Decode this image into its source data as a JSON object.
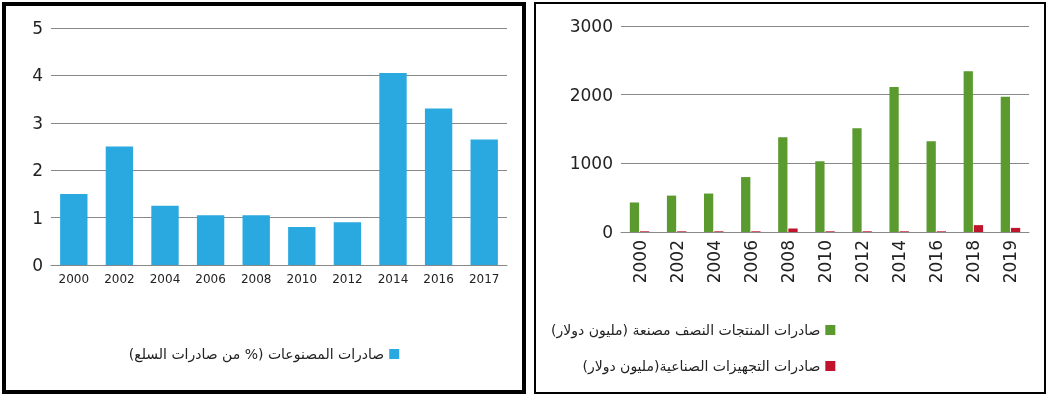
{
  "chart_data": [
    {
      "type": "bar",
      "categories": [
        "2000",
        "2002",
        "2004",
        "2006",
        "2008",
        "2010",
        "2012",
        "2014",
        "2016",
        "2017"
      ],
      "series": [
        {
          "name": "صادرات المصنوعات (% من صادرات السلع)",
          "color": "#29a9e0",
          "values": [
            1.5,
            2.5,
            1.25,
            1.05,
            1.05,
            0.8,
            0.9,
            4.05,
            3.3,
            2.65
          ]
        }
      ],
      "ylim": [
        0,
        5
      ],
      "yticks": [
        0,
        1,
        2,
        3,
        4,
        5
      ],
      "grid": "y",
      "legend": "bottom"
    },
    {
      "type": "bar",
      "categories": [
        "2000",
        "2002",
        "2004",
        "2006",
        "2008",
        "2010",
        "2012",
        "2014",
        "2016",
        "2018",
        "2019"
      ],
      "series": [
        {
          "name": "صادرات المنتجات النصف مصنعة (مليون دولار)",
          "color": "#5a9a2e",
          "values": [
            430,
            530,
            560,
            800,
            1380,
            1030,
            1510,
            2110,
            1320,
            2340,
            1970
          ]
        },
        {
          "name": "صادرات التجهيزات الصناعية(مليون دولار)",
          "color": "#c0142c",
          "values": [
            10,
            10,
            10,
            10,
            50,
            10,
            10,
            10,
            10,
            100,
            60
          ]
        }
      ],
      "ylim": [
        0,
        3000
      ],
      "yticks": [
        0,
        1000,
        2000,
        3000
      ],
      "grid": "y",
      "legend": "bottom"
    }
  ]
}
